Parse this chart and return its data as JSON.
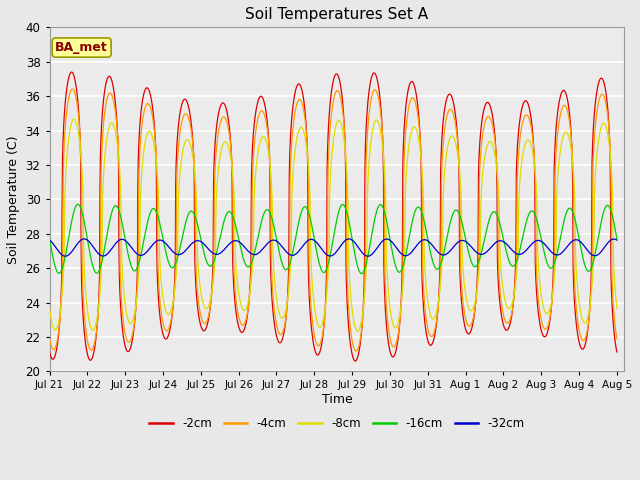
{
  "title": "Soil Temperatures Set A",
  "xlabel": "Time",
  "ylabel": "Soil Temperature (C)",
  "ylim": [
    20,
    40
  ],
  "annotation": "BA_met",
  "series": {
    "-2cm": {
      "color": "#dd0000",
      "amplitude": 7.5,
      "phase_hours": 14.0,
      "mean": 29.0,
      "sharpness": 3.0
    },
    "-4cm": {
      "color": "#ff9900",
      "amplitude": 6.8,
      "phase_hours": 14.5,
      "mean": 28.8,
      "sharpness": 2.8
    },
    "-8cm": {
      "color": "#dddd00",
      "amplitude": 5.5,
      "phase_hours": 15.5,
      "mean": 28.5,
      "sharpness": 2.2
    },
    "-16cm": {
      "color": "#00cc00",
      "amplitude": 1.8,
      "phase_hours": 18.0,
      "mean": 27.7,
      "sharpness": 1.0
    },
    "-32cm": {
      "color": "#0000cc",
      "amplitude": 0.45,
      "phase_hours": 22.0,
      "mean": 27.2,
      "sharpness": 1.0
    }
  },
  "tick_labels": [
    "Jul 21",
    "Jul 22",
    "Jul 23",
    "Jul 24",
    "Jul 25",
    "Jul 26",
    "Jul 27",
    "Jul 28",
    "Jul 29",
    "Jul 30",
    "Jul 31",
    "Aug 1",
    "Aug 2",
    "Aug 3",
    "Aug 4",
    "Aug 5"
  ],
  "tick_positions": [
    0,
    1,
    2,
    3,
    4,
    5,
    6,
    7,
    8,
    9,
    10,
    11,
    12,
    13,
    14,
    15
  ],
  "background_color": "#e8e8e8",
  "plot_bg_color": "#ebebeb",
  "grid_color": "#ffffff",
  "legend_colors": [
    "#dd0000",
    "#ff9900",
    "#dddd00",
    "#00cc00",
    "#0000cc"
  ],
  "legend_labels": [
    "-2cm",
    "-4cm",
    "-8cm",
    "-16cm",
    "-32cm"
  ]
}
